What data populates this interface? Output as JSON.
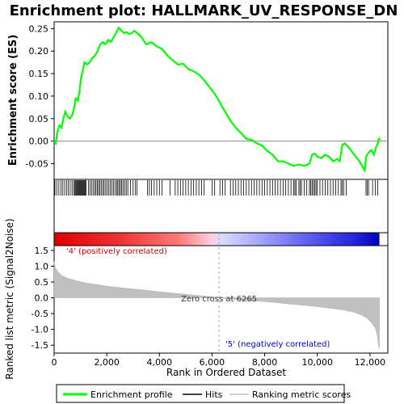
{
  "chart_data": {
    "type": "line",
    "title": "Enrichment plot: HALLMARK_UV_RESPONSE_DN",
    "top_panel": {
      "ylabel": "Enrichment score (ES)",
      "ylim": [
        -0.085,
        0.265
      ],
      "yticks": [
        "-0.05",
        "0.00",
        "0.05",
        "0.10",
        "0.15",
        "0.20",
        "0.25"
      ],
      "ytick_values": [
        -0.05,
        0.0,
        0.05,
        0.1,
        0.15,
        0.2,
        0.25
      ],
      "series_color": "#00ff00",
      "profile": [
        [
          0,
          0.0
        ],
        [
          60,
          -0.005
        ],
        [
          120,
          0.02
        ],
        [
          200,
          0.035
        ],
        [
          280,
          0.03
        ],
        [
          350,
          0.05
        ],
        [
          420,
          0.065
        ],
        [
          500,
          0.055
        ],
        [
          600,
          0.05
        ],
        [
          700,
          0.06
        ],
        [
          760,
          0.075
        ],
        [
          820,
          0.095
        ],
        [
          900,
          0.09
        ],
        [
          960,
          0.11
        ],
        [
          1020,
          0.14
        ],
        [
          1080,
          0.155
        ],
        [
          1150,
          0.175
        ],
        [
          1250,
          0.17
        ],
        [
          1350,
          0.175
        ],
        [
          1450,
          0.185
        ],
        [
          1550,
          0.19
        ],
        [
          1650,
          0.2
        ],
        [
          1750,
          0.215
        ],
        [
          1850,
          0.22
        ],
        [
          1950,
          0.215
        ],
        [
          2050,
          0.225
        ],
        [
          2150,
          0.22
        ],
        [
          2250,
          0.23
        ],
        [
          2350,
          0.24
        ],
        [
          2450,
          0.252
        ],
        [
          2550,
          0.245
        ],
        [
          2650,
          0.24
        ],
        [
          2750,
          0.242
        ],
        [
          2850,
          0.238
        ],
        [
          2950,
          0.24
        ],
        [
          3050,
          0.245
        ],
        [
          3150,
          0.24
        ],
        [
          3300,
          0.232
        ],
        [
          3500,
          0.215
        ],
        [
          3700,
          0.22
        ],
        [
          3900,
          0.21
        ],
        [
          4100,
          0.205
        ],
        [
          4300,
          0.19
        ],
        [
          4500,
          0.18
        ],
        [
          4700,
          0.17
        ],
        [
          4900,
          0.172
        ],
        [
          5100,
          0.16
        ],
        [
          5300,
          0.155
        ],
        [
          5500,
          0.148
        ],
        [
          5700,
          0.135
        ],
        [
          5900,
          0.12
        ],
        [
          6100,
          0.105
        ],
        [
          6300,
          0.085
        ],
        [
          6500,
          0.065
        ],
        [
          6700,
          0.045
        ],
        [
          6900,
          0.03
        ],
        [
          7100,
          0.018
        ],
        [
          7300,
          0.005
        ],
        [
          7500,
          0.003
        ],
        [
          7700,
          -0.005
        ],
        [
          7900,
          -0.01
        ],
        [
          8100,
          -0.022
        ],
        [
          8300,
          -0.03
        ],
        [
          8500,
          -0.045
        ],
        [
          8700,
          -0.045
        ],
        [
          8900,
          -0.05
        ],
        [
          9100,
          -0.055
        ],
        [
          9300,
          -0.052
        ],
        [
          9500,
          -0.055
        ],
        [
          9700,
          -0.05
        ],
        [
          9800,
          -0.03
        ],
        [
          9900,
          -0.028
        ],
        [
          10000,
          -0.035
        ],
        [
          10150,
          -0.038
        ],
        [
          10300,
          -0.03
        ],
        [
          10450,
          -0.035
        ],
        [
          10600,
          -0.045
        ],
        [
          10750,
          -0.04
        ],
        [
          10850,
          -0.045
        ],
        [
          10950,
          -0.008
        ],
        [
          11050,
          -0.005
        ],
        [
          11200,
          -0.015
        ],
        [
          11400,
          -0.03
        ],
        [
          11600,
          -0.045
        ],
        [
          11800,
          -0.065
        ],
        [
          11850,
          -0.035
        ],
        [
          11950,
          -0.025
        ],
        [
          12050,
          -0.02
        ],
        [
          12150,
          -0.03
        ],
        [
          12250,
          -0.01
        ],
        [
          12300,
          -0.005
        ],
        [
          12330,
          0.005
        ],
        [
          12400,
          0.005
        ]
      ]
    },
    "hits": [
      30,
      100,
      180,
      260,
      330,
      400,
      470,
      540,
      610,
      680,
      740,
      780,
      820,
      850,
      880,
      910,
      940,
      970,
      1000,
      1030,
      1060,
      1090,
      1120,
      1150,
      1180,
      1210,
      1300,
      1360,
      1420,
      1480,
      1540,
      1590,
      1640,
      1690,
      1740,
      1790,
      1850,
      1900,
      1960,
      2020,
      2080,
      2140,
      2200,
      2260,
      2320,
      2380,
      2420,
      2470,
      2520,
      2570,
      2620,
      2680,
      2740,
      2800,
      2900,
      3000,
      3080,
      3150,
      3550,
      3620,
      3700,
      3800,
      3900,
      4000,
      4100,
      4400,
      4600,
      4700,
      4800,
      4900,
      5000,
      5100,
      5200,
      5300,
      5400,
      5500,
      5600,
      5700,
      6000,
      6100,
      6300,
      6400,
      6500,
      6700,
      6800,
      6900,
      7000,
      7100,
      7200,
      7300,
      7400,
      7500,
      7600,
      7700,
      7800,
      7900,
      8000,
      8100,
      8200,
      8300,
      8400,
      8500,
      8600,
      8700,
      8800,
      8900,
      9000,
      9100,
      9150,
      9200,
      9300,
      9350,
      9400,
      9500,
      9600,
      9700,
      9750,
      9800,
      9850,
      9900,
      9950,
      10000,
      10100,
      10200,
      10300,
      10400,
      10500,
      10600,
      10700,
      10800,
      10900,
      10950,
      11000,
      11100,
      11850,
      11900,
      11950,
      12100,
      12200,
      12300
    ],
    "bottom_panel": {
      "ylabel": "Ranked list metric (Signal2Noise)",
      "xlabel": "Rank in Ordered Dataset",
      "ylim": [
        -1.75,
        1.65
      ],
      "yticks": [
        "-1.5",
        "-1.0",
        "-0.5",
        "0.0",
        "0.5",
        "1.0",
        "1.5"
      ],
      "ytick_values": [
        -1.5,
        -1.0,
        -0.5,
        0.0,
        0.5,
        1.0,
        1.5
      ],
      "metric": [
        [
          0,
          1.15
        ],
        [
          50,
          0.95
        ],
        [
          150,
          0.82
        ],
        [
          300,
          0.7
        ],
        [
          500,
          0.62
        ],
        [
          800,
          0.55
        ],
        [
          1200,
          0.47
        ],
        [
          1600,
          0.42
        ],
        [
          2000,
          0.37
        ],
        [
          2500,
          0.32
        ],
        [
          3000,
          0.28
        ],
        [
          3500,
          0.24
        ],
        [
          4000,
          0.19
        ],
        [
          4500,
          0.15
        ],
        [
          5000,
          0.11
        ],
        [
          5500,
          0.07
        ],
        [
          6000,
          0.03
        ],
        [
          6265,
          0.0
        ],
        [
          6600,
          -0.03
        ],
        [
          7000,
          -0.06
        ],
        [
          7500,
          -0.09
        ],
        [
          8000,
          -0.12
        ],
        [
          8500,
          -0.16
        ],
        [
          9000,
          -0.2
        ],
        [
          9500,
          -0.24
        ],
        [
          10000,
          -0.28
        ],
        [
          10500,
          -0.33
        ],
        [
          11000,
          -0.39
        ],
        [
          11400,
          -0.46
        ],
        [
          11700,
          -0.55
        ],
        [
          11900,
          -0.65
        ],
        [
          12050,
          -0.78
        ],
        [
          12200,
          -0.95
        ],
        [
          12280,
          -1.2
        ],
        [
          12330,
          -1.55
        ],
        [
          12360,
          -1.6
        ]
      ],
      "annotations": {
        "positive": "'4' (positively correlated)",
        "negative": "'5' (negatively correlated)",
        "zero_cross": "Zero cross at 6265",
        "zero_cross_rank": 6265
      }
    },
    "xlim": [
      0,
      12680
    ],
    "xticks": [
      "0",
      "2,000",
      "4,000",
      "6,000",
      "8,000",
      "10,000",
      "12,000"
    ],
    "xtick_values": [
      0,
      2000,
      4000,
      6000,
      8000,
      10000,
      12000
    ],
    "n_ranks": 12360,
    "legend": {
      "placement": "bottom",
      "items": [
        {
          "label": "Enrichment profile",
          "color": "#00ff00"
        },
        {
          "label": "Hits",
          "color": "#000000"
        },
        {
          "label": "Ranking metric scores",
          "color": "#c0c0c0"
        }
      ]
    }
  }
}
